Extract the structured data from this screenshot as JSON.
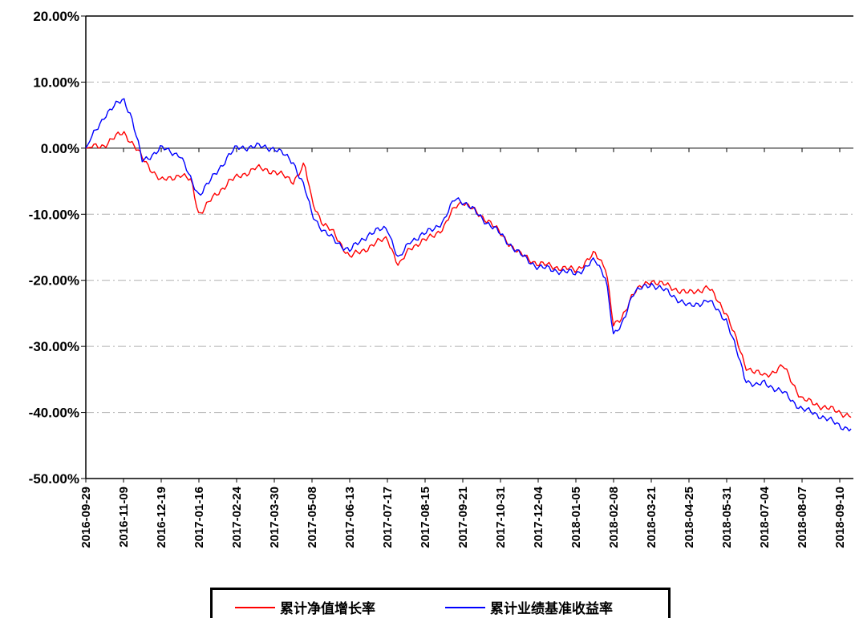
{
  "chart_data": {
    "type": "line",
    "title": "",
    "xlabel": "",
    "ylabel": "",
    "ylim": [
      -50,
      20
    ],
    "yticks": [
      20,
      10,
      0,
      -10,
      -20,
      -30,
      -40,
      -50
    ],
    "ytick_labels": [
      "20.00%",
      "10.00%",
      "0.00%",
      "-10.00%",
      "-20.00%",
      "-30.00%",
      "-40.00%",
      "-50.00%"
    ],
    "x_tick_labels": [
      "2016-09-29",
      "2016-11-09",
      "2016-12-19",
      "2017-01-16",
      "2017-02-24",
      "2017-03-30",
      "2017-05-08",
      "2017-06-13",
      "2017-07-17",
      "2017-08-15",
      "2017-09-21",
      "2017-10-31",
      "2017-12-04",
      "2018-01-05",
      "2018-02-08",
      "2018-03-21",
      "2018-04-25",
      "2018-05-31",
      "2018-07-04",
      "2018-08-07",
      "2018-09-10"
    ],
    "grid": "horizontal dash-dot",
    "legend_position": "bottom-center",
    "x_keys": [
      0,
      0.5,
      1,
      1.2,
      1.5,
      2,
      2.5,
      2.8,
      3,
      3.3,
      3.8,
      4,
      4.5,
      5,
      5.5,
      5.8,
      6,
      6.3,
      6.6,
      7,
      7.5,
      8,
      8.3,
      8.6,
      9,
      9.5,
      9.8,
      10,
      10.4,
      10.7,
      11,
      11.5,
      12,
      12.5,
      13,
      13.5,
      13.8,
      14,
      14.2,
      14.5,
      15,
      15.5,
      16,
      16.5,
      17,
      17.5,
      17.8,
      18,
      18.5,
      19,
      19.5,
      20,
      20.3
    ],
    "series": [
      {
        "name": "累计净值增长率",
        "color": "#ff0000",
        "values": [
          0,
          0.5,
          2.5,
          1,
          -1.5,
          -5,
          -4,
          -5,
          -10,
          -8,
          -5,
          -4.5,
          -3,
          -3.5,
          -5,
          -2.5,
          -8,
          -11.5,
          -13,
          -16.5,
          -15,
          -13.5,
          -18,
          -15,
          -14,
          -12,
          -8.8,
          -8,
          -10,
          -11,
          -13,
          -16,
          -17.5,
          -18,
          -18.5,
          -16,
          -18,
          -27,
          -26,
          -22,
          -20,
          -21,
          -22,
          -21,
          -25,
          -33,
          -34,
          -34.5,
          -33,
          -38,
          -39,
          -40,
          -40.5
        ]
      },
      {
        "name": "累计业绩基准收益率",
        "color": "#0000ff",
        "values": [
          0,
          5,
          7.5,
          5,
          -2,
          0,
          -1,
          -5,
          -7,
          -5,
          -1,
          0,
          0.3,
          0,
          -2,
          -6,
          -10,
          -12.5,
          -14,
          -15.5,
          -13,
          -12,
          -17,
          -14,
          -13,
          -11,
          -7.5,
          -8,
          -10,
          -11.5,
          -13,
          -16,
          -18,
          -18.5,
          -19,
          -17,
          -19.5,
          -28.5,
          -27,
          -22,
          -20.5,
          -22,
          -24,
          -23,
          -26,
          -35,
          -36,
          -35.5,
          -37,
          -39.5,
          -40.5,
          -42,
          -42.5
        ]
      }
    ]
  }
}
